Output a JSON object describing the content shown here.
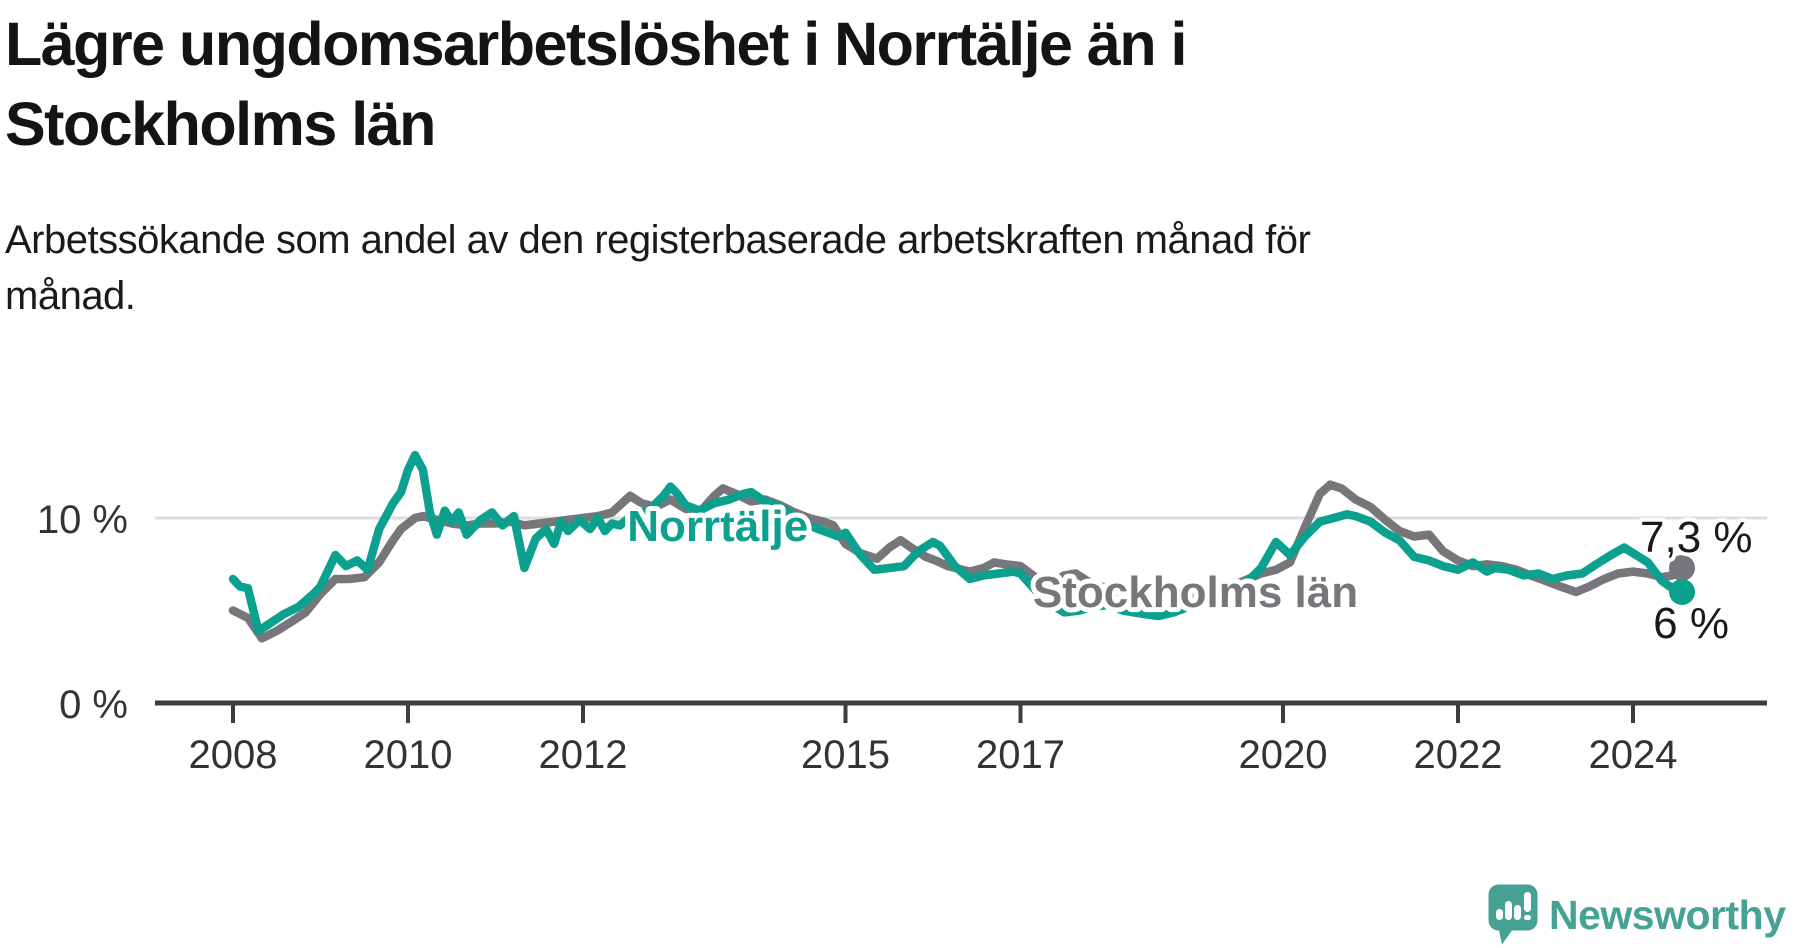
{
  "header": {
    "title_lines": [
      "Lägre ungdomsarbetslöshet i Norrtälje än i",
      "Stockholms län"
    ],
    "subtitle_lines": [
      "Arbetssökande som andel av den registerbaserade arbetskraften månad för",
      "månad."
    ]
  },
  "chart_data": {
    "type": "line",
    "title": "Lägre ungdomsarbetslöshet i Norrtälje än i Stockholms län",
    "subtitle": "Arbetssökande som andel av den registerbaserade arbetskraften månad för månad.",
    "grid": "horizontal-only",
    "legend_position": "inline-curve-labels",
    "x_axis": {
      "ticks": [
        2008,
        2010,
        2012,
        2015,
        2017,
        2020,
        2022,
        2024
      ],
      "range": [
        2007.1,
        2025.5
      ]
    },
    "y_axis": {
      "ticks": [
        {
          "value": 0,
          "label": "0 %"
        },
        {
          "value": 10,
          "label": "10 %"
        }
      ],
      "range": [
        0,
        16
      ]
    },
    "colors": {
      "norrtalje": "#0ca18f",
      "stockholms_lan": "#76767b",
      "gridline": "#dedede",
      "axis": "#3d3d3d",
      "tick_text": "#333333",
      "value_text": "#1a1a1a"
    },
    "series": [
      {
        "name": "Stockholms län",
        "color": "#76767b",
        "name_label": {
          "t": 2019.0,
          "v": 5.19
        },
        "end_label": {
          "text": "7,3 %",
          "t": 2024.08,
          "v": 8.16
        },
        "end_value": 7.3,
        "points": [
          [
            2008.0,
            5.0
          ],
          [
            2008.17,
            4.6
          ],
          [
            2008.33,
            3.5
          ],
          [
            2008.5,
            3.9
          ],
          [
            2008.67,
            4.4
          ],
          [
            2008.83,
            4.9
          ],
          [
            2009.0,
            5.9
          ],
          [
            2009.17,
            6.7
          ],
          [
            2009.33,
            6.7
          ],
          [
            2009.5,
            6.8
          ],
          [
            2009.67,
            7.6
          ],
          [
            2009.83,
            8.8
          ],
          [
            2009.92,
            9.4
          ],
          [
            2010.08,
            10.0
          ],
          [
            2010.17,
            10.1
          ],
          [
            2010.33,
            9.9
          ],
          [
            2010.5,
            9.7
          ],
          [
            2010.67,
            9.6
          ],
          [
            2010.83,
            9.7
          ],
          [
            2011.0,
            9.7
          ],
          [
            2011.17,
            9.8
          ],
          [
            2011.33,
            9.6
          ],
          [
            2011.5,
            9.7
          ],
          [
            2011.67,
            9.8
          ],
          [
            2011.83,
            9.9
          ],
          [
            2012.0,
            10.0
          ],
          [
            2012.17,
            10.1
          ],
          [
            2012.33,
            10.3
          ],
          [
            2012.54,
            11.2
          ],
          [
            2012.67,
            10.8
          ],
          [
            2012.83,
            10.6
          ],
          [
            2013.0,
            11.0
          ],
          [
            2013.17,
            10.5
          ],
          [
            2013.33,
            10.3
          ],
          [
            2013.5,
            11.2
          ],
          [
            2013.6,
            11.6
          ],
          [
            2013.75,
            11.3
          ],
          [
            2013.92,
            10.9
          ],
          [
            2014.08,
            11.0
          ],
          [
            2014.25,
            10.7
          ],
          [
            2014.42,
            10.3
          ],
          [
            2014.58,
            10.0
          ],
          [
            2014.75,
            9.8
          ],
          [
            2014.86,
            9.6
          ],
          [
            2015.0,
            8.6
          ],
          [
            2015.17,
            8.1
          ],
          [
            2015.36,
            7.8
          ],
          [
            2015.5,
            8.4
          ],
          [
            2015.63,
            8.8
          ],
          [
            2015.75,
            8.4
          ],
          [
            2015.92,
            7.9
          ],
          [
            2016.03,
            7.7
          ],
          [
            2016.17,
            7.4
          ],
          [
            2016.42,
            7.1
          ],
          [
            2016.58,
            7.3
          ],
          [
            2016.7,
            7.6
          ],
          [
            2016.83,
            7.5
          ],
          [
            2017.0,
            7.4
          ],
          [
            2017.17,
            6.8
          ],
          [
            2017.33,
            6.4
          ],
          [
            2017.5,
            6.9
          ],
          [
            2017.63,
            7.0
          ],
          [
            2017.83,
            6.4
          ],
          [
            2018.0,
            6.2
          ],
          [
            2018.25,
            5.7
          ],
          [
            2018.5,
            5.4
          ],
          [
            2018.75,
            5.6
          ],
          [
            2019.0,
            5.9
          ],
          [
            2019.25,
            6.2
          ],
          [
            2019.5,
            6.5
          ],
          [
            2019.75,
            7.0
          ],
          [
            2019.92,
            7.2
          ],
          [
            2020.08,
            7.6
          ],
          [
            2020.25,
            9.5
          ],
          [
            2020.42,
            11.3
          ],
          [
            2020.54,
            11.8
          ],
          [
            2020.67,
            11.6
          ],
          [
            2020.83,
            11.0
          ],
          [
            2021.0,
            10.6
          ],
          [
            2021.17,
            9.9
          ],
          [
            2021.33,
            9.3
          ],
          [
            2021.5,
            9.0
          ],
          [
            2021.67,
            9.1
          ],
          [
            2021.83,
            8.2
          ],
          [
            2022.0,
            7.7
          ],
          [
            2022.17,
            7.4
          ],
          [
            2022.33,
            7.5
          ],
          [
            2022.5,
            7.4
          ],
          [
            2022.67,
            7.2
          ],
          [
            2022.83,
            6.9
          ],
          [
            2023.0,
            6.6
          ],
          [
            2023.17,
            6.3
          ],
          [
            2023.35,
            6.0
          ],
          [
            2023.5,
            6.3
          ],
          [
            2023.67,
            6.7
          ],
          [
            2023.83,
            7.0
          ],
          [
            2024.0,
            7.1
          ],
          [
            2024.17,
            7.0
          ],
          [
            2024.33,
            6.8
          ],
          [
            2024.45,
            6.9
          ],
          [
            2024.56,
            7.3
          ]
        ]
      },
      {
        "name": "Norrtälje",
        "color": "#0ca18f",
        "name_label": {
          "t": 2013.54,
          "v": 8.76
        },
        "end_label": {
          "text": "6 %",
          "t": 2024.23,
          "v": 3.51
        },
        "end_value": 6.0,
        "points": [
          [
            2008.0,
            6.7
          ],
          [
            2008.08,
            6.3
          ],
          [
            2008.17,
            6.2
          ],
          [
            2008.29,
            3.9
          ],
          [
            2008.42,
            4.3
          ],
          [
            2008.58,
            4.8
          ],
          [
            2008.75,
            5.2
          ],
          [
            2008.92,
            5.9
          ],
          [
            2009.0,
            6.3
          ],
          [
            2009.17,
            8.0
          ],
          [
            2009.29,
            7.4
          ],
          [
            2009.42,
            7.7
          ],
          [
            2009.54,
            7.2
          ],
          [
            2009.67,
            9.4
          ],
          [
            2009.83,
            10.8
          ],
          [
            2009.92,
            11.4
          ],
          [
            2010.0,
            12.6
          ],
          [
            2010.08,
            13.4
          ],
          [
            2010.17,
            12.6
          ],
          [
            2010.25,
            10.3
          ],
          [
            2010.33,
            9.1
          ],
          [
            2010.42,
            10.4
          ],
          [
            2010.5,
            9.8
          ],
          [
            2010.58,
            10.3
          ],
          [
            2010.67,
            9.1
          ],
          [
            2010.83,
            9.9
          ],
          [
            2010.96,
            10.3
          ],
          [
            2011.08,
            9.6
          ],
          [
            2011.21,
            10.1
          ],
          [
            2011.33,
            7.3
          ],
          [
            2011.46,
            8.9
          ],
          [
            2011.58,
            9.4
          ],
          [
            2011.67,
            8.6
          ],
          [
            2011.75,
            9.8
          ],
          [
            2011.83,
            9.3
          ],
          [
            2011.96,
            9.9
          ],
          [
            2012.08,
            9.4
          ],
          [
            2012.17,
            10.0
          ],
          [
            2012.25,
            9.3
          ],
          [
            2012.33,
            9.7
          ],
          [
            2012.42,
            9.6
          ],
          [
            2012.58,
            10.2
          ],
          [
            2012.75,
            10.4
          ],
          [
            2012.92,
            11.2
          ],
          [
            2013.0,
            11.7
          ],
          [
            2013.08,
            11.3
          ],
          [
            2013.17,
            10.7
          ],
          [
            2013.33,
            10.4
          ],
          [
            2013.5,
            10.8
          ],
          [
            2013.67,
            11.0
          ],
          [
            2013.83,
            11.3
          ],
          [
            2013.92,
            11.4
          ],
          [
            2014.08,
            10.9
          ],
          [
            2014.25,
            10.6
          ],
          [
            2014.42,
            10.1
          ],
          [
            2014.58,
            9.6
          ],
          [
            2014.75,
            9.3
          ],
          [
            2014.92,
            9.0
          ],
          [
            2015.0,
            9.2
          ],
          [
            2015.17,
            8.0
          ],
          [
            2015.33,
            7.2
          ],
          [
            2015.5,
            7.3
          ],
          [
            2015.67,
            7.4
          ],
          [
            2015.83,
            8.2
          ],
          [
            2016.0,
            8.7
          ],
          [
            2016.08,
            8.5
          ],
          [
            2016.25,
            7.4
          ],
          [
            2016.42,
            6.7
          ],
          [
            2016.58,
            6.9
          ],
          [
            2016.75,
            7.0
          ],
          [
            2016.92,
            7.1
          ],
          [
            2017.0,
            7.0
          ],
          [
            2017.17,
            6.1
          ],
          [
            2017.33,
            5.4
          ],
          [
            2017.5,
            4.9
          ],
          [
            2017.67,
            5.0
          ],
          [
            2017.83,
            5.2
          ],
          [
            2018.0,
            5.3
          ],
          [
            2018.17,
            5.0
          ],
          [
            2018.42,
            4.8
          ],
          [
            2018.58,
            4.7
          ],
          [
            2018.75,
            4.9
          ],
          [
            2018.92,
            5.2
          ],
          [
            2019.08,
            5.5
          ],
          [
            2019.25,
            5.6
          ],
          [
            2019.42,
            5.9
          ],
          [
            2019.58,
            6.5
          ],
          [
            2019.75,
            7.3
          ],
          [
            2019.92,
            8.7
          ],
          [
            2020.08,
            8.0
          ],
          [
            2020.25,
            9.0
          ],
          [
            2020.42,
            9.8
          ],
          [
            2020.58,
            10.0
          ],
          [
            2020.73,
            10.2
          ],
          [
            2020.83,
            10.1
          ],
          [
            2021.0,
            9.8
          ],
          [
            2021.17,
            9.2
          ],
          [
            2021.33,
            8.8
          ],
          [
            2021.5,
            7.9
          ],
          [
            2021.67,
            7.7
          ],
          [
            2021.83,
            7.4
          ],
          [
            2022.0,
            7.2
          ],
          [
            2022.17,
            7.6
          ],
          [
            2022.33,
            7.1
          ],
          [
            2022.42,
            7.3
          ],
          [
            2022.58,
            7.2
          ],
          [
            2022.75,
            6.9
          ],
          [
            2022.92,
            7.0
          ],
          [
            2023.08,
            6.7
          ],
          [
            2023.25,
            6.9
          ],
          [
            2023.42,
            7.0
          ],
          [
            2023.58,
            7.5
          ],
          [
            2023.75,
            8.0
          ],
          [
            2023.9,
            8.4
          ],
          [
            2024.0,
            8.1
          ],
          [
            2024.17,
            7.6
          ],
          [
            2024.33,
            6.6
          ],
          [
            2024.42,
            6.3
          ],
          [
            2024.56,
            6.0
          ]
        ]
      }
    ]
  },
  "branding": {
    "logo_text": "Newsworthy",
    "logo_color": "#46a295"
  }
}
